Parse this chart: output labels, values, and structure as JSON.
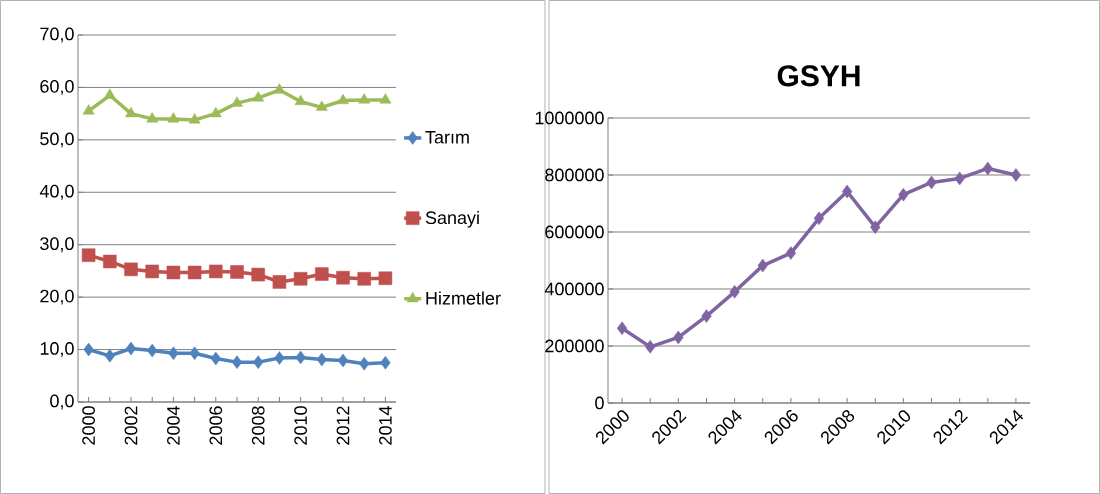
{
  "chart_data": [
    {
      "type": "line",
      "categories": [
        "2000",
        null,
        "2002",
        null,
        "2004",
        null,
        "2006",
        null,
        "2008",
        null,
        "2010",
        null,
        "2012",
        null,
        "2014"
      ],
      "series": [
        {
          "name": "Tarım",
          "color": "#4f81bd",
          "marker": "diamond",
          "values": [
            10.0,
            8.8,
            10.2,
            9.8,
            9.3,
            9.3,
            8.3,
            7.6,
            7.6,
            8.4,
            8.5,
            8.1,
            7.9,
            7.3,
            7.5
          ]
        },
        {
          "name": "Sanayi",
          "color": "#c0504d",
          "marker": "square",
          "values": [
            28.0,
            26.8,
            25.3,
            24.9,
            24.7,
            24.7,
            24.9,
            24.8,
            24.3,
            22.9,
            23.5,
            24.4,
            23.7,
            23.5,
            23.6
          ]
        },
        {
          "name": "Hizmetler",
          "color": "#9bbb59",
          "marker": "triangle",
          "values": [
            55.5,
            58.5,
            55.0,
            54.0,
            54.0,
            53.8,
            55.0,
            57.0,
            58.0,
            59.5,
            57.3,
            56.2,
            57.5,
            57.6,
            57.6
          ]
        }
      ],
      "ylim": [
        0,
        70
      ],
      "yticks": [
        {
          "value": 0,
          "label": "0,0"
        },
        {
          "value": 10,
          "label": "10,0"
        },
        {
          "value": 20,
          "label": "20,0"
        },
        {
          "value": 30,
          "label": "30,0"
        },
        {
          "value": 40,
          "label": "40,0"
        },
        {
          "value": 50,
          "label": "50,0"
        },
        {
          "value": 60,
          "label": "60,0"
        },
        {
          "value": 70,
          "label": "70,0"
        }
      ],
      "grid": "y",
      "legend": "right"
    },
    {
      "type": "line",
      "title": "GSYH",
      "categories": [
        "2000",
        null,
        "2002",
        null,
        "2004",
        null,
        "2006",
        null,
        "2008",
        null,
        "2010",
        null,
        "2012",
        null,
        "2014"
      ],
      "series": [
        {
          "color": "#8064a2",
          "values": [
            262000,
            197000,
            230000,
            305000,
            390000,
            482000,
            526000,
            648000,
            742000,
            617000,
            731000,
            774000,
            788000,
            823000,
            800000
          ]
        }
      ],
      "ylim": [
        0,
        1000000
      ],
      "yticks": [
        0,
        200000,
        400000,
        600000,
        800000,
        1000000
      ],
      "grid": "y",
      "marker": "diamond"
    }
  ]
}
